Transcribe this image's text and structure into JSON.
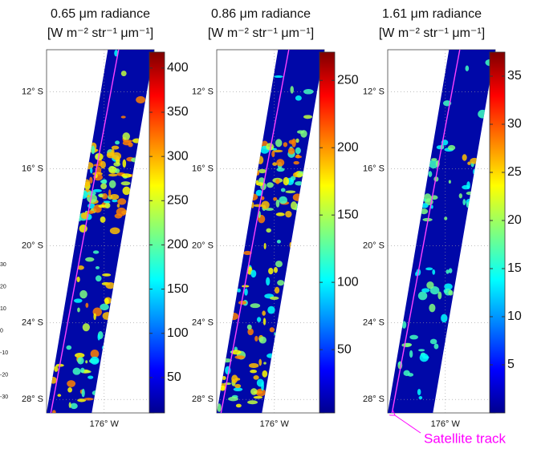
{
  "chart_data": [
    {
      "type": "heatmap",
      "title": "0.65 μm radiance",
      "subtitle": "[W m⁻² str⁻¹ μm⁻¹]",
      "colormap": "jet",
      "grid": true,
      "ylim": [
        9.8,
        28.7
      ],
      "yticks": [
        {
          "value": 12,
          "label": "12° S"
        },
        {
          "value": 16,
          "label": "16° S"
        },
        {
          "value": 20,
          "label": "20° S"
        },
        {
          "value": 24,
          "label": "24° S"
        },
        {
          "value": 28,
          "label": "28° S"
        }
      ],
      "xlim": [
        179,
        173.4
      ],
      "xticks": [
        {
          "value": 176,
          "label": "176° W"
        }
      ],
      "clim": [
        10,
        418
      ],
      "cticks": [
        50,
        100,
        150,
        200,
        250,
        300,
        350,
        400
      ]
    },
    {
      "type": "heatmap",
      "title": "0.86 μm radiance",
      "subtitle": "[W m⁻² str⁻¹ μm⁻¹]",
      "colormap": "jet",
      "grid": true,
      "ylim": [
        9.8,
        28.7
      ],
      "yticks": [
        {
          "value": 12,
          "label": "12° S"
        },
        {
          "value": 16,
          "label": "16° S"
        },
        {
          "value": 20,
          "label": "20° S"
        },
        {
          "value": 24,
          "label": "24° S"
        },
        {
          "value": 28,
          "label": "28° S"
        }
      ],
      "xlim": [
        179,
        173.4
      ],
      "xticks": [
        {
          "value": 176,
          "label": "176° W"
        }
      ],
      "clim": [
        3,
        271
      ],
      "cticks": [
        50,
        100,
        150,
        200,
        250
      ]
    },
    {
      "type": "heatmap",
      "title": "1.61 μm radiance",
      "subtitle": "[W m⁻² str⁻¹ μm⁻¹]",
      "colormap": "jet",
      "grid": true,
      "ylim": [
        9.8,
        28.7
      ],
      "yticks": [
        {
          "value": 12,
          "label": "12° S"
        },
        {
          "value": 16,
          "label": "16° S"
        },
        {
          "value": 20,
          "label": "20° S"
        },
        {
          "value": 24,
          "label": "24° S"
        },
        {
          "value": 28,
          "label": "28° S"
        }
      ],
      "xlim": [
        179,
        173.4
      ],
      "xticks": [
        {
          "value": 176,
          "label": "176° W"
        }
      ],
      "clim": [
        0,
        37.5
      ],
      "cticks": [
        5,
        10,
        15,
        20,
        25,
        30,
        35
      ],
      "annotation": "Satellite track"
    }
  ],
  "cropped_colorbar_ticks": [
    30,
    20,
    10,
    0,
    -10,
    -20,
    -30
  ]
}
